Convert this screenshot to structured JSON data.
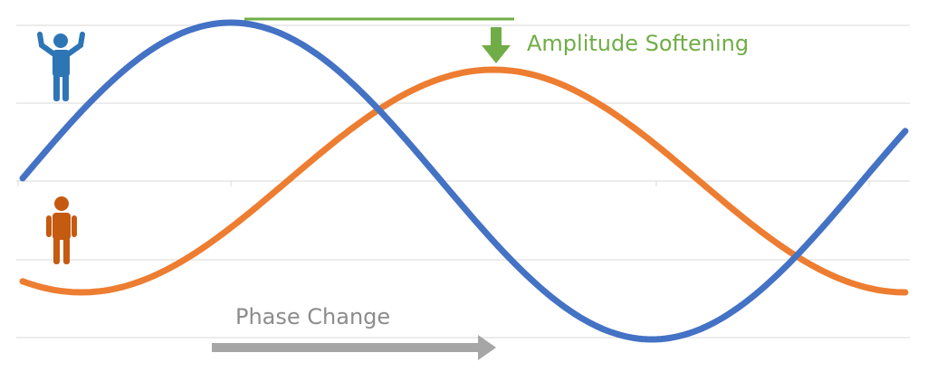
{
  "annotations": {
    "amplitude": "Amplitude Softening",
    "phase": "Phase Change"
  }
}
